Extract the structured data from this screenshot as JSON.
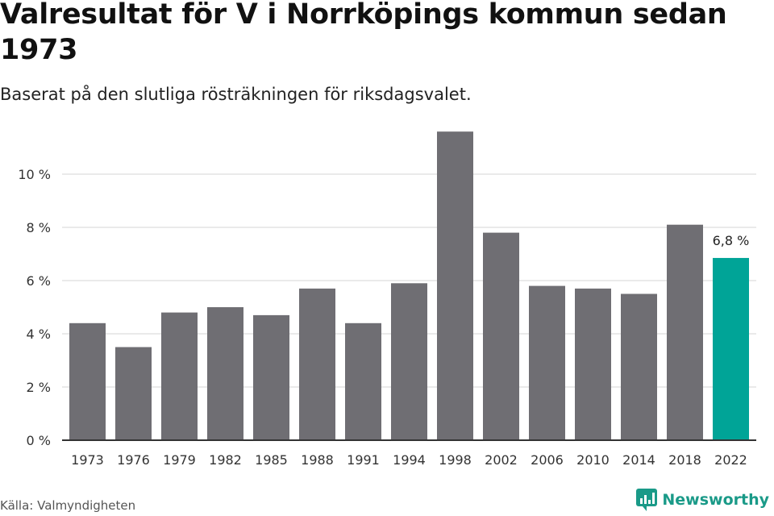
{
  "title": "Valresultat för V i Norrköpings kommun sedan 1973",
  "subtitle": "Baserat på den slutliga rösträkningen för riksdagsvalet.",
  "source": "Källa: Valmyndigheten",
  "brand": {
    "name": "Newsworthy",
    "logo_icon": "bar-chart-logo-icon"
  },
  "colors": {
    "bar": "#6f6e73",
    "highlight": "#00a497",
    "grid": "#dddddd",
    "axis": "#333333",
    "brand": "#1a9a88"
  },
  "chart_data": {
    "type": "bar",
    "categories": [
      "1973",
      "1976",
      "1979",
      "1982",
      "1985",
      "1988",
      "1991",
      "1994",
      "1998",
      "2002",
      "2006",
      "2010",
      "2014",
      "2018",
      "2022"
    ],
    "values": [
      4.4,
      3.5,
      4.8,
      5.0,
      4.7,
      5.7,
      4.4,
      5.9,
      11.6,
      7.8,
      5.8,
      5.7,
      5.5,
      8.1,
      6.85
    ],
    "highlight_index": 14,
    "highlight_label": "6,8 %",
    "yticks": [
      0,
      2,
      4,
      6,
      8,
      10
    ],
    "ytick_labels": [
      "0 %",
      "2 %",
      "4 %",
      "6 %",
      "8 %",
      "10 %"
    ],
    "ylim": [
      0,
      12
    ],
    "grid": true,
    "xlabel": "",
    "ylabel": ""
  }
}
